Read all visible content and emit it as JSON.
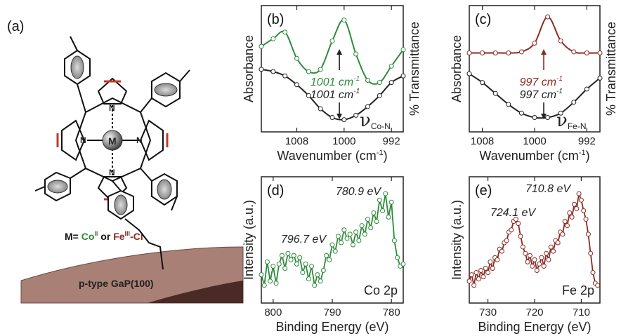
{
  "figure": {
    "panel_a": {
      "letter": "(a)",
      "metal_label": "M",
      "legend_prefix": "M= ",
      "co_label": "Co",
      "co_sup": "II",
      "or_label": " or ",
      "fe_label": "Fe",
      "fe_sup": "III",
      "fe_suffix": "-Cl",
      "substrate_label": "p-type GaP(100)",
      "colors": {
        "co": "#2e8b3a",
        "fe": "#8b2a22",
        "substrate": "#a88076"
      }
    }
  },
  "chart_data": [
    {
      "id": "b",
      "type": "scatter",
      "panel_letter": "(b)",
      "xlabel": "Wavenumber (cm",
      "xlabel_sup": "-1",
      "xlabel_close": ")",
      "ylabel_left": "Absorbance",
      "ylabel_right": "% Transmittance",
      "xlim": [
        1014,
        990
      ],
      "xticks": [
        1008,
        1000,
        992
      ],
      "annotation_nu": "ν",
      "annotation_sub": "Co-N",
      "series": [
        {
          "color": "#2e8b3a",
          "label": "1001 cm",
          "label_sup": "-1",
          "x": [
            1014,
            1012,
            1010,
            1008,
            1006,
            1004,
            1002,
            1000,
            998,
            996,
            994,
            992,
            990
          ],
          "y": [
            0.73,
            0.8,
            0.86,
            0.62,
            0.5,
            0.52,
            0.78,
            0.97,
            0.66,
            0.42,
            0.4,
            0.55,
            0.7
          ]
        },
        {
          "color": "#222222",
          "label": "1001 cm",
          "label_sup": "-1",
          "x": [
            1014,
            1012,
            1010,
            1008,
            1006,
            1004,
            1002,
            1000,
            998,
            996,
            994,
            992,
            990
          ],
          "y": [
            0.52,
            0.5,
            0.46,
            0.38,
            0.28,
            0.16,
            0.08,
            0.06,
            0.1,
            0.18,
            0.28,
            0.4,
            0.46
          ]
        }
      ]
    },
    {
      "id": "c",
      "type": "scatter",
      "panel_letter": "(c)",
      "xlabel": "Wavenumber (cm",
      "xlabel_sup": "-1",
      "xlabel_close": ")",
      "ylabel_left": "Absorbance",
      "ylabel_right": "% Transmittance",
      "xlim": [
        1010,
        990
      ],
      "xticks": [
        1008,
        1000,
        992
      ],
      "annotation_nu": "ν",
      "annotation_sub": "Fe-N",
      "series": [
        {
          "color": "#8b2a22",
          "label": "997 cm",
          "label_sup": "-1",
          "x": [
            1010,
            1008,
            1006,
            1004,
            1002,
            1000,
            998,
            996,
            994,
            992,
            990
          ],
          "y": [
            0.67,
            0.67,
            0.67,
            0.67,
            0.68,
            0.76,
            1.0,
            0.78,
            0.68,
            0.67,
            0.67
          ]
        },
        {
          "color": "#222222",
          "label": "997 cm",
          "label_sup": "-1",
          "x": [
            1010,
            1008,
            1006,
            1004,
            1002,
            1000,
            998,
            996,
            994,
            992,
            990
          ],
          "y": [
            0.48,
            0.4,
            0.3,
            0.2,
            0.12,
            0.08,
            0.08,
            0.12,
            0.22,
            0.34,
            0.44
          ]
        }
      ]
    },
    {
      "id": "d",
      "type": "line",
      "panel_letter": "(d)",
      "xlabel": "Binding Energy (eV)",
      "ylabel": "Intensity (a.u.)",
      "xlim": [
        802,
        778
      ],
      "xticks": [
        800,
        790,
        780
      ],
      "corner_label": "Co 2p",
      "color": "#2e8b3a",
      "peaks": [
        {
          "label": "780.9 eV",
          "x": 780.9
        },
        {
          "label": "796.7 eV",
          "x": 796.7
        }
      ],
      "x": [
        802,
        801.5,
        801,
        800.5,
        800,
        799.5,
        799,
        798.5,
        798,
        797.5,
        797,
        796.5,
        796,
        795.5,
        795,
        794.5,
        794,
        793.5,
        793,
        792.5,
        792,
        791.5,
        791,
        790.5,
        790,
        789.5,
        789,
        788.5,
        788,
        787.5,
        787,
        786.5,
        786,
        785.5,
        785,
        784.5,
        784,
        783.5,
        783,
        782.5,
        782,
        781.5,
        781,
        780.5,
        780,
        779.5,
        779,
        778.5,
        778
      ],
      "y": [
        0.2,
        0.1,
        0.32,
        0.14,
        0.28,
        0.12,
        0.3,
        0.38,
        0.26,
        0.4,
        0.34,
        0.38,
        0.3,
        0.36,
        0.22,
        0.3,
        0.16,
        0.28,
        0.1,
        0.2,
        0.14,
        0.24,
        0.38,
        0.34,
        0.48,
        0.42,
        0.56,
        0.5,
        0.62,
        0.54,
        0.58,
        0.48,
        0.6,
        0.52,
        0.66,
        0.58,
        0.72,
        0.64,
        0.78,
        0.7,
        0.9,
        0.8,
        0.96,
        0.74,
        0.88,
        0.52,
        0.36,
        0.28,
        0.3
      ]
    },
    {
      "id": "e",
      "type": "line",
      "panel_letter": "(e)",
      "xlabel": "Binding Energy (eV)",
      "ylabel": "Intensity (a.u.)",
      "xlim": [
        734,
        706
      ],
      "xticks": [
        730,
        720,
        710
      ],
      "corner_label": "Fe 2p",
      "color": "#8b2a22",
      "peaks": [
        {
          "label": "710.8 eV",
          "x": 710.8
        },
        {
          "label": "724.1 eV",
          "x": 724.1
        }
      ],
      "x": [
        734,
        733.5,
        733,
        732.5,
        732,
        731.5,
        731,
        730.5,
        730,
        729.5,
        729,
        728.5,
        728,
        727.5,
        727,
        726.5,
        726,
        725.5,
        725,
        724.5,
        724,
        723.5,
        723,
        722.5,
        722,
        721.5,
        721,
        720.5,
        720,
        719.5,
        719,
        718.5,
        718,
        717.5,
        717,
        716.5,
        716,
        715.5,
        715,
        714.5,
        714,
        713.5,
        713,
        712.5,
        712,
        711.5,
        711,
        710.5,
        710,
        709.5,
        709,
        708.5,
        708,
        707.5,
        707,
        706.5
      ],
      "y": [
        0.14,
        0.2,
        0.1,
        0.22,
        0.16,
        0.24,
        0.18,
        0.26,
        0.22,
        0.32,
        0.26,
        0.36,
        0.34,
        0.44,
        0.42,
        0.5,
        0.52,
        0.6,
        0.62,
        0.7,
        0.72,
        0.68,
        0.56,
        0.46,
        0.4,
        0.32,
        0.38,
        0.28,
        0.34,
        0.24,
        0.3,
        0.36,
        0.28,
        0.4,
        0.34,
        0.46,
        0.42,
        0.52,
        0.5,
        0.6,
        0.58,
        0.7,
        0.66,
        0.78,
        0.74,
        0.86,
        0.82,
        0.96,
        0.9,
        0.8,
        0.72,
        0.58,
        0.4,
        0.22,
        0.12,
        0.1
      ]
    }
  ]
}
